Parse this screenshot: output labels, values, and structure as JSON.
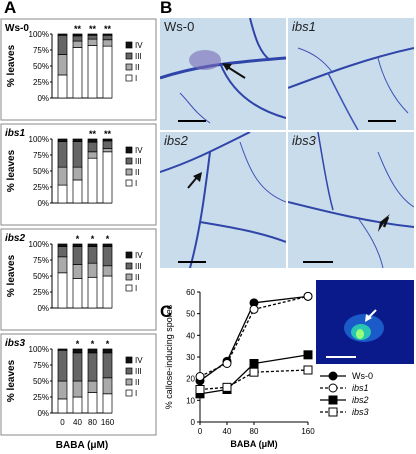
{
  "panel_labels": {
    "A": "A",
    "B": "B",
    "C": "C"
  },
  "panelA": {
    "ylabel": "% leaves",
    "xlabel": "BABA (μM)",
    "x_ticks": [
      "0",
      "40",
      "80",
      "160"
    ],
    "y_ticks": [
      "0%",
      "25%",
      "50%",
      "75%",
      "100%"
    ],
    "legend": [
      "IV",
      "III",
      "II",
      "I"
    ],
    "colors": {
      "I": "#ffffff",
      "II": "#aaaaaa",
      "III": "#666666",
      "IV": "#111111"
    }
  },
  "chart_data": [
    {
      "type": "bar",
      "title": "Ws-0",
      "categories": [
        "0",
        "40",
        "80",
        "160"
      ],
      "series": [
        {
          "name": "I",
          "values": [
            36,
            79,
            82,
            81
          ]
        },
        {
          "name": "II",
          "values": [
            32,
            10,
            10,
            10
          ]
        },
        {
          "name": "III",
          "values": [
            30,
            8,
            6,
            7
          ]
        },
        {
          "name": "IV",
          "values": [
            2,
            3,
            2,
            2
          ]
        }
      ],
      "significance": [
        "",
        "**",
        "**",
        "**"
      ],
      "ylim": [
        0,
        100
      ]
    },
    {
      "type": "bar",
      "title": "ibs1",
      "categories": [
        "0",
        "40",
        "80",
        "160"
      ],
      "series": [
        {
          "name": "I",
          "values": [
            28,
            36,
            70,
            80
          ]
        },
        {
          "name": "II",
          "values": [
            28,
            20,
            10,
            5
          ]
        },
        {
          "name": "III",
          "values": [
            40,
            40,
            15,
            12
          ]
        },
        {
          "name": "IV",
          "values": [
            4,
            4,
            5,
            3
          ]
        }
      ],
      "significance": [
        "",
        "",
        "**",
        "**"
      ],
      "ylim": [
        0,
        100
      ]
    },
    {
      "type": "bar",
      "title": "ibs2",
      "categories": [
        "0",
        "40",
        "80",
        "160"
      ],
      "series": [
        {
          "name": "I",
          "values": [
            55,
            46,
            48,
            50
          ]
        },
        {
          "name": "II",
          "values": [
            25,
            22,
            22,
            16
          ]
        },
        {
          "name": "III",
          "values": [
            16,
            28,
            26,
            30
          ]
        },
        {
          "name": "IV",
          "values": [
            4,
            4,
            4,
            4
          ]
        }
      ],
      "significance": [
        "",
        "*",
        "*",
        "*"
      ],
      "ylim": [
        0,
        100
      ]
    },
    {
      "type": "bar",
      "title": "ibs3",
      "categories": [
        "0",
        "40",
        "80",
        "160"
      ],
      "series": [
        {
          "name": "I",
          "values": [
            22,
            25,
            32,
            30
          ]
        },
        {
          "name": "II",
          "values": [
            28,
            25,
            18,
            25
          ]
        },
        {
          "name": "III",
          "values": [
            48,
            44,
            44,
            39
          ]
        },
        {
          "name": "IV",
          "values": [
            2,
            6,
            6,
            6
          ]
        }
      ],
      "significance": [
        "",
        "*",
        "*",
        "*"
      ],
      "ylim": [
        0,
        100
      ]
    },
    {
      "type": "line",
      "xlabel": "BABA (μM)",
      "ylabel": "% callose-inducing spores",
      "x": [
        0,
        40,
        80,
        160
      ],
      "xlim": [
        0,
        160
      ],
      "ylim": [
        0,
        60
      ],
      "x_ticks": [
        0,
        40,
        80,
        160
      ],
      "y_ticks": [
        0,
        10,
        20,
        30,
        40,
        50,
        60
      ],
      "series": [
        {
          "name": "Ws-0",
          "values": [
            19,
            28,
            55,
            58
          ],
          "marker": "filled-circle",
          "line": "solid"
        },
        {
          "name": "ibs1",
          "values": [
            21,
            27,
            52,
            58
          ],
          "marker": "open-circle",
          "line": "dashed"
        },
        {
          "name": "ibs2",
          "values": [
            13,
            15,
            27,
            31
          ],
          "marker": "filled-square",
          "line": "solid"
        },
        {
          "name": "ibs3",
          "values": [
            15,
            16,
            23,
            24
          ],
          "marker": "open-square",
          "line": "dashed"
        }
      ],
      "legend_position": "right"
    }
  ],
  "panelB": {
    "images": [
      {
        "label": "Ws-0",
        "italic": false
      },
      {
        "label": "ibs1",
        "italic": true
      },
      {
        "label": "ibs2",
        "italic": true
      },
      {
        "label": "ibs3",
        "italic": true
      }
    ]
  }
}
